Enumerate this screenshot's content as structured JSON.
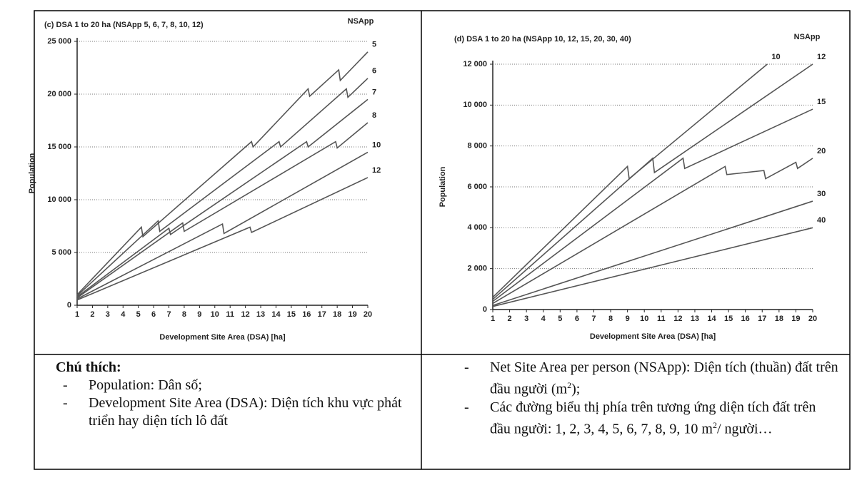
{
  "chart_data": [
    {
      "type": "line",
      "title": "(c) DSA 1 to 20 ha (NSApp 5, 6, 7, 8, 10, 12)",
      "annotation": "NSApp",
      "x_label": "Development Site Area (DSA) [ha]",
      "y_label": "Population",
      "xlim": [
        1,
        20
      ],
      "xticks": [
        1,
        2,
        3,
        4,
        5,
        6,
        7,
        8,
        9,
        10,
        11,
        12,
        13,
        14,
        15,
        16,
        17,
        18,
        19,
        20
      ],
      "ylim": [
        0,
        25000
      ],
      "yticks": [
        0,
        {
          "value": 5000,
          "label": "5 000"
        },
        {
          "value": 10000,
          "label": "10 000"
        },
        {
          "value": 15000,
          "label": "15 000"
        },
        {
          "value": 20000,
          "label": "20 000"
        },
        {
          "value": 25000,
          "label": "25 000"
        }
      ],
      "grid": true,
      "series": [
        {
          "name": "5",
          "color": "#555555",
          "x": [
            1,
            5.2,
            5.3,
            12.4,
            12.5,
            16.1,
            16.2,
            18.1,
            18.2,
            20
          ],
          "values": [
            1000,
            7400,
            6500,
            15500,
            15000,
            20500,
            19800,
            22300,
            21300,
            24000
          ]
        },
        {
          "name": "6",
          "color": "#555555",
          "x": [
            1,
            6.3,
            6.4,
            14.2,
            14.3,
            18.6,
            18.7,
            20
          ],
          "values": [
            900,
            8000,
            7000,
            15500,
            15000,
            20500,
            19700,
            21500
          ]
        },
        {
          "name": "7",
          "color": "#555555",
          "x": [
            1,
            7.0,
            7.1,
            16.0,
            16.1,
            20
          ],
          "values": [
            800,
            7300,
            6700,
            15500,
            15000,
            19500
          ]
        },
        {
          "name": "8",
          "color": "#555555",
          "x": [
            1,
            7.9,
            8.0,
            17.9,
            18.0,
            20
          ],
          "values": [
            700,
            7800,
            7000,
            15500,
            14900,
            17300
          ]
        },
        {
          "name": "10",
          "color": "#555555",
          "x": [
            1,
            10.5,
            10.6,
            20
          ],
          "values": [
            600,
            7700,
            6800,
            14500
          ]
        },
        {
          "name": "12",
          "color": "#555555",
          "x": [
            1,
            12.3,
            12.4,
            20
          ],
          "values": [
            500,
            7400,
            6900,
            12100
          ]
        }
      ]
    },
    {
      "type": "line",
      "title": "(d) DSA 1 to 20 ha (NSApp 10, 12, 15, 20, 30, 40)",
      "annotation": "NSApp",
      "x_label": "Development Site Area (DSA) [ha]",
      "y_label": "Population",
      "xlim": [
        1,
        20
      ],
      "xticks": [
        1,
        2,
        3,
        4,
        5,
        6,
        7,
        8,
        9,
        10,
        11,
        12,
        13,
        14,
        15,
        16,
        17,
        18,
        19,
        20
      ],
      "ylim": [
        0,
        12000
      ],
      "yticks": [
        0,
        {
          "value": 2000,
          "label": "2 000"
        },
        {
          "value": 4000,
          "label": "4 000"
        },
        {
          "value": 6000,
          "label": "6 000"
        },
        {
          "value": 8000,
          "label": "8 000"
        },
        {
          "value": 10000,
          "label": "10 000"
        },
        {
          "value": 12000,
          "label": "12 000"
        }
      ],
      "grid": true,
      "series": [
        {
          "name": "10",
          "color": "#555555",
          "x": [
            1,
            9.0,
            9.1,
            17.3
          ],
          "values": [
            600,
            7000,
            6400,
            12000
          ]
        },
        {
          "name": "12",
          "color": "#555555",
          "x": [
            1,
            10.5,
            10.6,
            20
          ],
          "values": [
            500,
            7400,
            6700,
            12000
          ]
        },
        {
          "name": "15",
          "color": "#555555",
          "x": [
            1,
            12.3,
            12.4,
            20
          ],
          "values": [
            400,
            7400,
            6900,
            9800
          ]
        },
        {
          "name": "20",
          "color": "#555555",
          "x": [
            1,
            14.8,
            14.9,
            17.1,
            17.2,
            19.0,
            19.1,
            20
          ],
          "values": [
            300,
            7000,
            6600,
            6800,
            6400,
            7200,
            6900,
            7400
          ]
        },
        {
          "name": "30",
          "color": "#555555",
          "x": [
            1,
            20
          ],
          "values": [
            200,
            5300
          ]
        },
        {
          "name": "40",
          "color": "#555555",
          "x": [
            1,
            20
          ],
          "values": [
            150,
            4000
          ]
        }
      ]
    }
  ],
  "notes": {
    "left": {
      "heading": "Chú thích:",
      "items": [
        "Population: Dân số;",
        "Development Site Area (DSA): Diện tích khu vực phát triển hay diện tích lô đất"
      ]
    },
    "right": {
      "items": [
        [
          "Net Site Area per person (NSApp): Diện tích (thuần) đất trên đầu người (m",
          "2",
          ");"
        ],
        [
          "Các đường biểu thị phía trên tương ứng diện tích đất trên đầu người: 1, 2, 3, 4, 5, 6, 7, 8, 9, 10 m",
          "2",
          "/ người…"
        ]
      ]
    }
  }
}
